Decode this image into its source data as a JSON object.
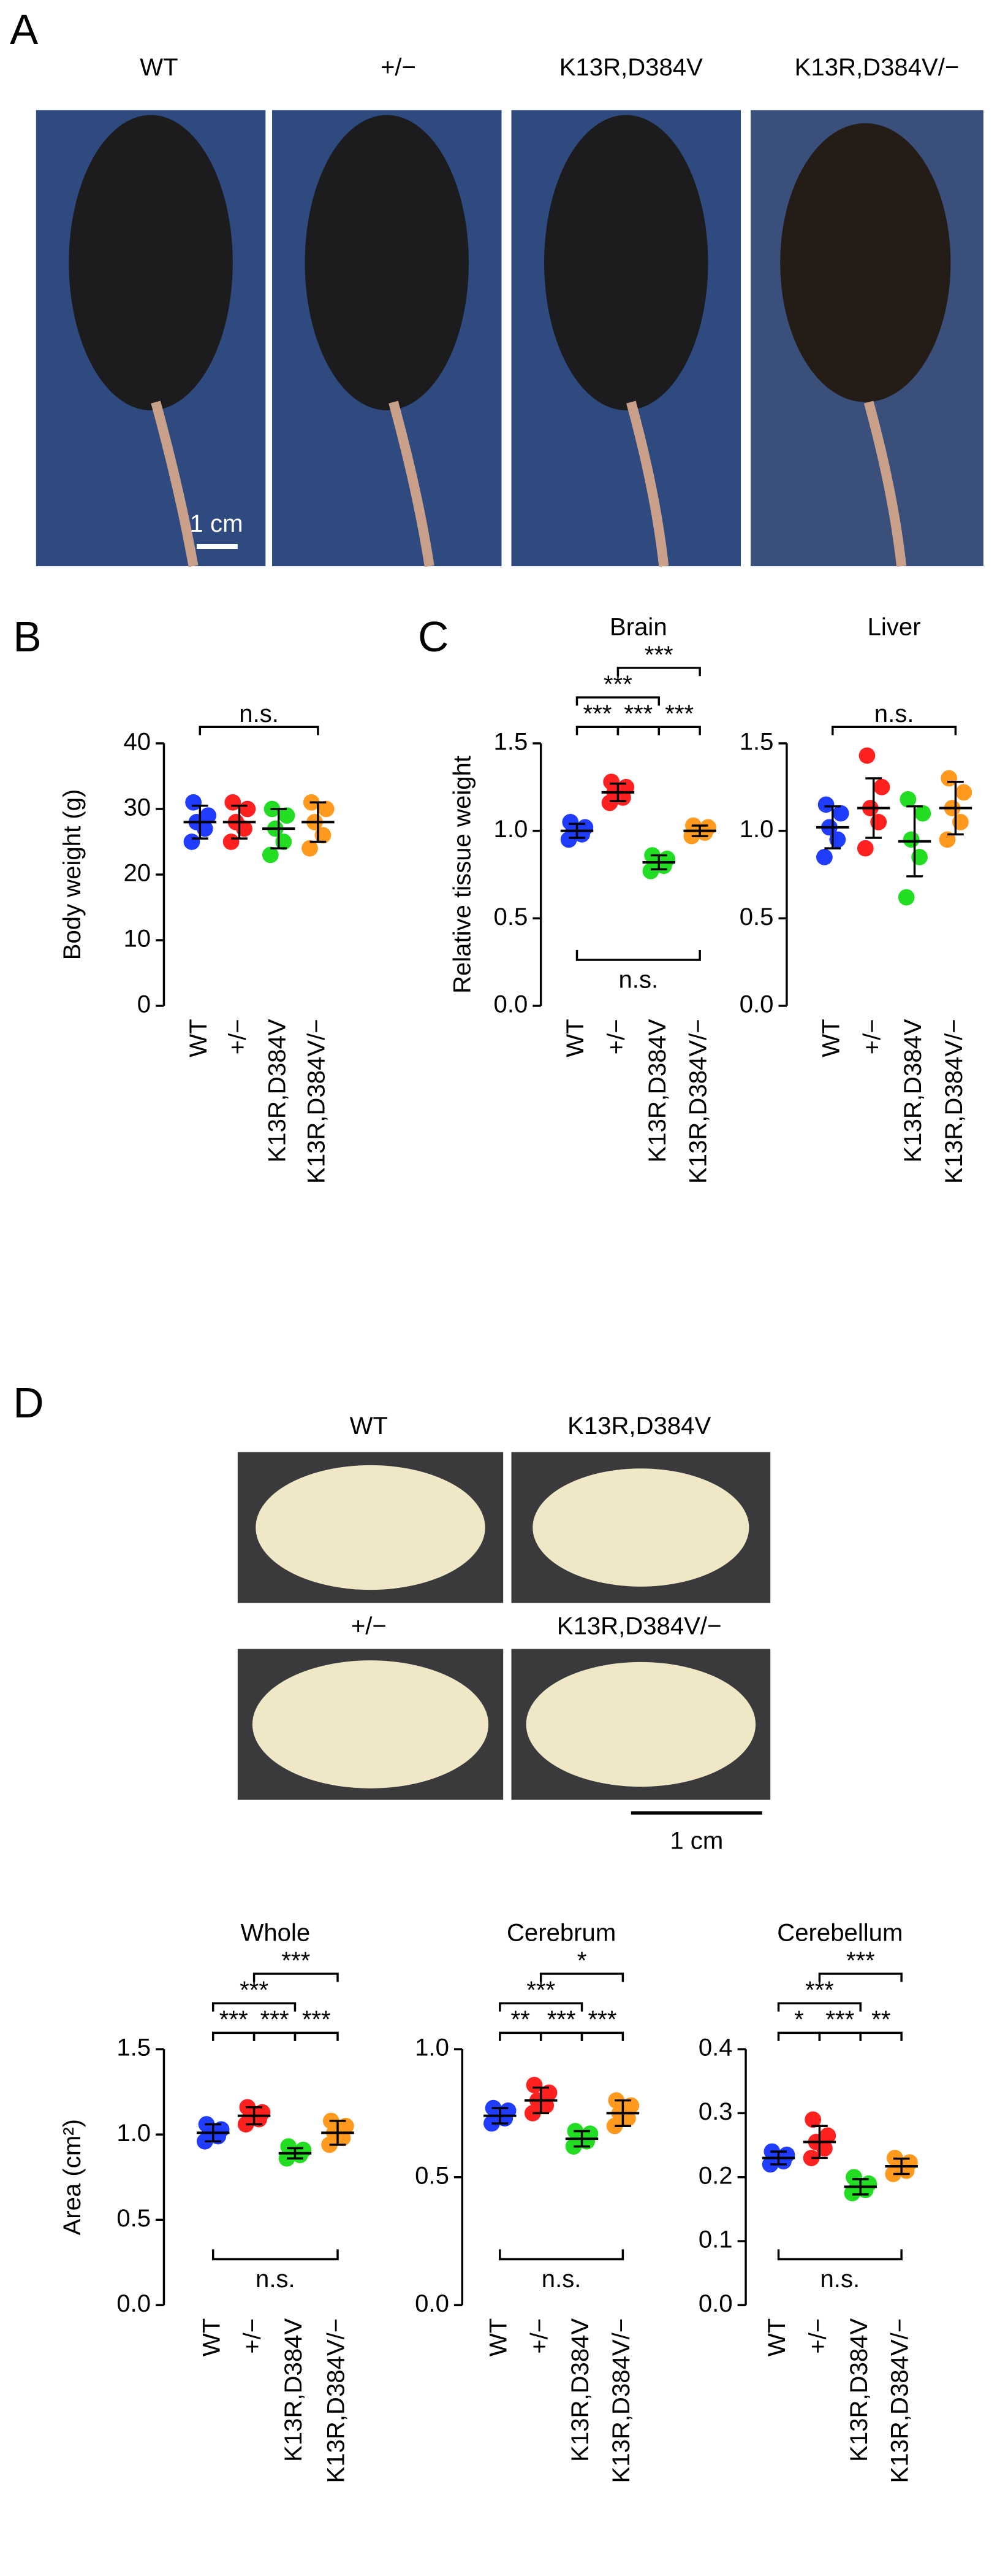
{
  "panel_letters": [
    "A",
    "B",
    "C",
    "D"
  ],
  "photos_a": {
    "labels": [
      "WT",
      "+/−",
      "K13R,D384V",
      "K13R,D384V/−"
    ],
    "scale_bar": "1 cm"
  },
  "photos_d": {
    "labels": [
      "WT",
      "K13R,D384V",
      "+/−",
      "K13R,D384V/−"
    ],
    "scale_bar": "1 cm"
  },
  "chart_data": [
    {
      "type": "dot",
      "title": null,
      "ylabel": "Body weight (g)",
      "categories": [
        "WT",
        "+/−",
        "K13R,D384V",
        "K13R,D384V/−"
      ],
      "colors": [
        "#1f3cff",
        "#ff2020",
        "#22dd22",
        "#ff9a1f"
      ],
      "points": [
        [
          25,
          27,
          28,
          29,
          31
        ],
        [
          25,
          27,
          28,
          30,
          31
        ],
        [
          23,
          25,
          27,
          29,
          30
        ],
        [
          24,
          26,
          28,
          30,
          31
        ]
      ],
      "means": [
        28,
        28,
        27,
        28
      ],
      "sd": [
        2.5,
        2.5,
        3,
        3
      ],
      "ylim": [
        0,
        40
      ],
      "yticks": [
        0,
        10,
        20,
        30,
        40
      ],
      "brackets": [
        {
          "between": [
            0,
            3
          ],
          "label": "n.s."
        }
      ]
    },
    {
      "type": "dot",
      "title": "Brain",
      "ylabel": "Relative tissue weight",
      "categories": [
        "WT",
        "+/−",
        "K13R,D384V",
        "K13R,D384V/−"
      ],
      "colors": [
        "#1f3cff",
        "#ff2020",
        "#22dd22",
        "#ff9a1f"
      ],
      "points": [
        [
          0.95,
          0.98,
          1.0,
          1.02,
          1.05
        ],
        [
          1.16,
          1.19,
          1.22,
          1.25,
          1.28
        ],
        [
          0.77,
          0.8,
          0.82,
          0.84,
          0.86
        ],
        [
          0.97,
          0.99,
          1.0,
          1.02,
          1.03
        ]
      ],
      "means": [
        1.0,
        1.22,
        0.82,
        1.0
      ],
      "sd": [
        0.04,
        0.05,
        0.04,
        0.03
      ],
      "ylim": [
        0,
        1.5
      ],
      "yticks": [
        {
          "value": 0,
          "label": "0.0"
        },
        0.5,
        {
          "value": 1,
          "label": "1.0"
        },
        1.5
      ],
      "brackets": [
        {
          "between": [
            0,
            1
          ],
          "label": "***"
        },
        {
          "between": [
            1,
            2
          ],
          "label": "***"
        },
        {
          "between": [
            2,
            3
          ],
          "label": "***"
        },
        {
          "between": [
            0,
            2
          ],
          "label": "***"
        },
        {
          "between": [
            1,
            3
          ],
          "label": "***"
        },
        {
          "between": [
            0,
            3
          ],
          "label": "n.s.",
          "side": "below"
        }
      ]
    },
    {
      "type": "dot",
      "title": "Liver",
      "ylabel": null,
      "categories": [
        "WT",
        "+/−",
        "K13R,D384V",
        "K13R,D384V/−"
      ],
      "colors": [
        "#1f3cff",
        "#ff2020",
        "#22dd22",
        "#ff9a1f"
      ],
      "points": [
        [
          0.85,
          0.95,
          1.02,
          1.1,
          1.15
        ],
        [
          0.9,
          1.05,
          1.13,
          1.25,
          1.43
        ],
        [
          0.62,
          0.85,
          0.95,
          1.1,
          1.18
        ],
        [
          0.95,
          1.05,
          1.13,
          1.22,
          1.3
        ]
      ],
      "means": [
        1.02,
        1.13,
        0.94,
        1.13
      ],
      "sd": [
        0.12,
        0.17,
        0.2,
        0.15
      ],
      "ylim": [
        0,
        1.5
      ],
      "yticks": [
        {
          "value": 0,
          "label": "0.0"
        },
        0.5,
        {
          "value": 1,
          "label": "1.0"
        },
        1.5
      ],
      "brackets": [
        {
          "between": [
            0,
            3
          ],
          "label": "n.s."
        }
      ]
    },
    {
      "type": "dot",
      "title": "Whole",
      "ylabel": "Area (cm²)",
      "categories": [
        "WT",
        "+/−",
        "K13R,D384V",
        "K13R,D384V/−"
      ],
      "colors": [
        "#1f3cff",
        "#ff2020",
        "#22dd22",
        "#ff9a1f"
      ],
      "points": [
        [
          0.96,
          0.99,
          1.01,
          1.03,
          1.06
        ],
        [
          1.06,
          1.09,
          1.11,
          1.13,
          1.16
        ],
        [
          0.86,
          0.88,
          0.89,
          0.91,
          0.93
        ],
        [
          0.94,
          0.98,
          1.01,
          1.05,
          1.08
        ]
      ],
      "means": [
        1.01,
        1.11,
        0.89,
        1.01
      ],
      "sd": [
        0.05,
        0.05,
        0.03,
        0.07
      ],
      "ylim": [
        0,
        1.5
      ],
      "yticks": [
        {
          "value": 0,
          "label": "0.0"
        },
        0.5,
        {
          "value": 1,
          "label": "1.0"
        },
        1.5
      ],
      "brackets": [
        {
          "between": [
            0,
            1
          ],
          "label": "***"
        },
        {
          "between": [
            1,
            2
          ],
          "label": "***"
        },
        {
          "between": [
            2,
            3
          ],
          "label": "***"
        },
        {
          "between": [
            0,
            2
          ],
          "label": "***"
        },
        {
          "between": [
            1,
            3
          ],
          "label": "***"
        },
        {
          "between": [
            0,
            3
          ],
          "label": "n.s.",
          "side": "below"
        }
      ]
    },
    {
      "type": "dot",
      "title": "Cerebrum",
      "ylabel": null,
      "categories": [
        "WT",
        "+/−",
        "K13R,D384V",
        "K13R,D384V/−"
      ],
      "colors": [
        "#1f3cff",
        "#ff2020",
        "#22dd22",
        "#ff9a1f"
      ],
      "points": [
        [
          0.71,
          0.73,
          0.74,
          0.76,
          0.77
        ],
        [
          0.75,
          0.78,
          0.8,
          0.83,
          0.86
        ],
        [
          0.62,
          0.64,
          0.65,
          0.67,
          0.68
        ],
        [
          0.7,
          0.73,
          0.75,
          0.78,
          0.8
        ]
      ],
      "means": [
        0.74,
        0.8,
        0.65,
        0.75
      ],
      "sd": [
        0.03,
        0.05,
        0.03,
        0.05
      ],
      "ylim": [
        0,
        1
      ],
      "yticks": [
        {
          "value": 0,
          "label": "0.0"
        },
        0.5,
        {
          "value": 1,
          "label": "1.0"
        }
      ],
      "brackets": [
        {
          "between": [
            0,
            1
          ],
          "label": "**"
        },
        {
          "between": [
            1,
            2
          ],
          "label": "***"
        },
        {
          "between": [
            2,
            3
          ],
          "label": "***"
        },
        {
          "between": [
            0,
            2
          ],
          "label": "***"
        },
        {
          "between": [
            1,
            3
          ],
          "label": "*"
        },
        {
          "between": [
            0,
            3
          ],
          "label": "n.s.",
          "side": "below"
        }
      ]
    },
    {
      "type": "dot",
      "title": "Cerebellum",
      "ylabel": null,
      "categories": [
        "WT",
        "+/−",
        "K13R,D384V",
        "K13R,D384V/−"
      ],
      "colors": [
        "#1f3cff",
        "#ff2020",
        "#22dd22",
        "#ff9a1f"
      ],
      "points": [
        [
          0.22,
          0.225,
          0.23,
          0.235,
          0.24
        ],
        [
          0.23,
          0.245,
          0.255,
          0.265,
          0.29
        ],
        [
          0.175,
          0.18,
          0.185,
          0.19,
          0.2
        ],
        [
          0.205,
          0.21,
          0.217,
          0.223,
          0.23
        ]
      ],
      "means": [
        0.23,
        0.255,
        0.185,
        0.217
      ],
      "sd": [
        0.01,
        0.025,
        0.012,
        0.012
      ],
      "ylim": [
        0,
        0.4
      ],
      "yticks": [
        {
          "value": 0,
          "label": "0.0"
        },
        0.1,
        0.2,
        0.3,
        0.4
      ],
      "brackets": [
        {
          "between": [
            0,
            1
          ],
          "label": "*"
        },
        {
          "between": [
            1,
            2
          ],
          "label": "***"
        },
        {
          "between": [
            2,
            3
          ],
          "label": "**"
        },
        {
          "between": [
            0,
            2
          ],
          "label": "***"
        },
        {
          "between": [
            1,
            3
          ],
          "label": "***"
        },
        {
          "between": [
            0,
            3
          ],
          "label": "n.s.",
          "side": "below"
        }
      ]
    }
  ]
}
